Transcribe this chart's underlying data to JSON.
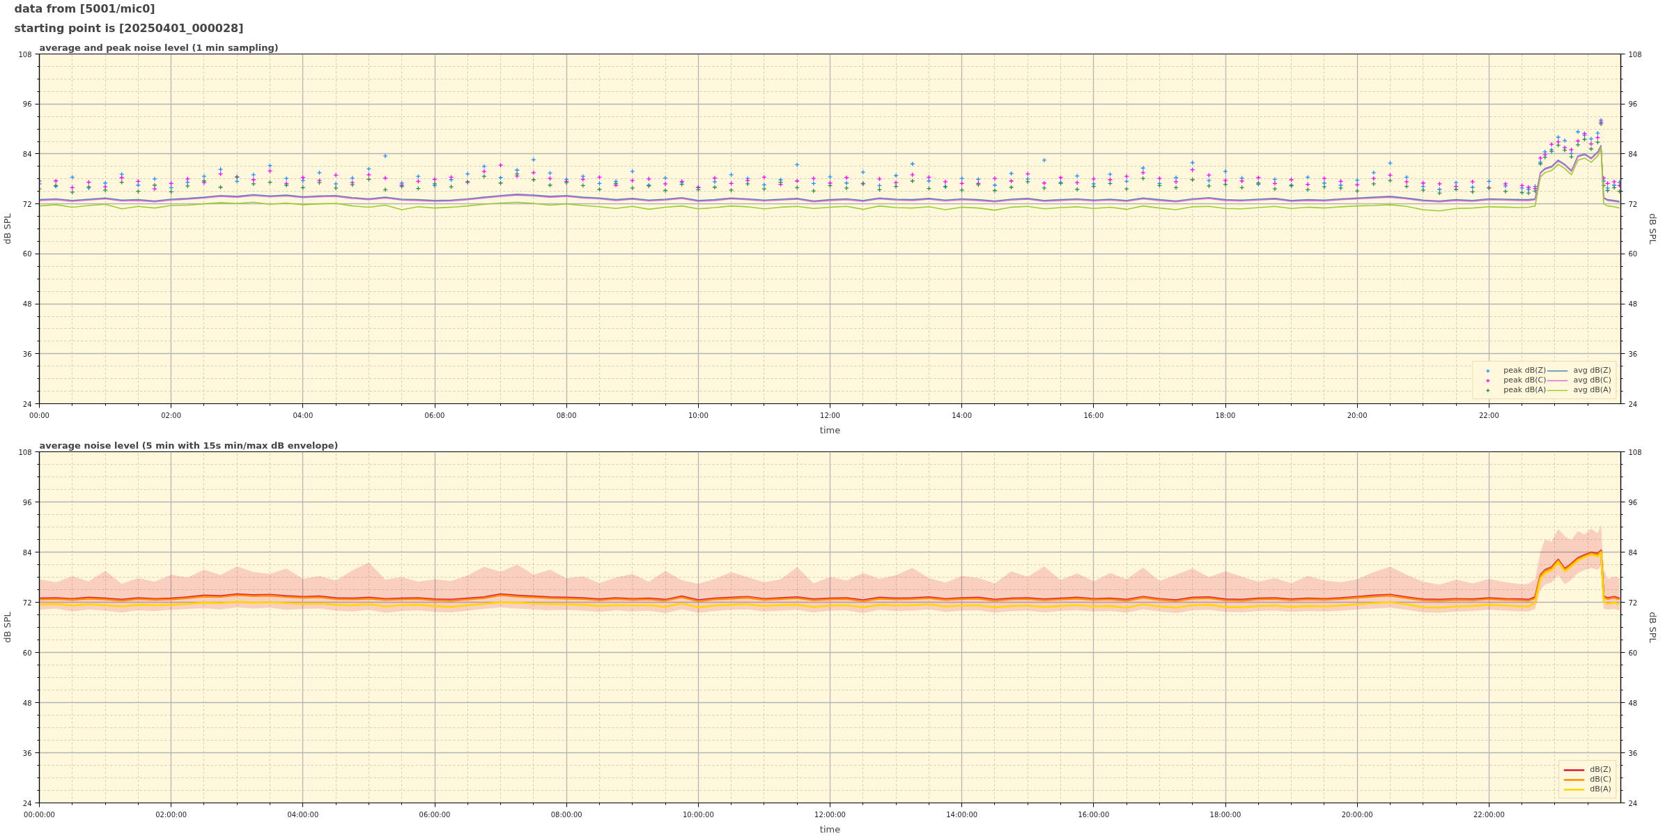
{
  "chart_data": [
    {
      "type": "line",
      "title": "average and peak noise level (1 min sampling)",
      "annotations": [
        "data from [5001/mic0]",
        "starting point is [20250401_000028]"
      ],
      "xlabel": "time",
      "ylabel": "dB SPL",
      "y2label": "dB SPL",
      "xlim": [
        0,
        24
      ],
      "xticks": [
        {
          "value": 0,
          "label": "00:00"
        },
        {
          "value": 0.5,
          "label": null
        },
        {
          "value": 1,
          "label": null
        },
        {
          "value": 1.5,
          "label": null
        },
        {
          "value": 2,
          "label": "02:00"
        },
        {
          "value": 2.5,
          "label": null
        },
        {
          "value": 3,
          "label": null
        },
        {
          "value": 3.5,
          "label": null
        },
        {
          "value": 4,
          "label": "04:00"
        },
        {
          "value": 4.5,
          "label": null
        },
        {
          "value": 5,
          "label": null
        },
        {
          "value": 5.5,
          "label": null
        },
        {
          "value": 6,
          "label": "06:00"
        },
        {
          "value": 6.5,
          "label": null
        },
        {
          "value": 7,
          "label": null
        },
        {
          "value": 7.5,
          "label": null
        },
        {
          "value": 8,
          "label": "08:00"
        },
        {
          "value": 8.5,
          "label": null
        },
        {
          "value": 9,
          "label": null
        },
        {
          "value": 9.5,
          "label": null
        },
        {
          "value": 10,
          "label": "10:00"
        },
        {
          "value": 10.5,
          "label": null
        },
        {
          "value": 11,
          "label": null
        },
        {
          "value": 11.5,
          "label": null
        },
        {
          "value": 12,
          "label": "12:00"
        },
        {
          "value": 12.5,
          "label": null
        },
        {
          "value": 13,
          "label": null
        },
        {
          "value": 13.5,
          "label": null
        },
        {
          "value": 14,
          "label": "14:00"
        },
        {
          "value": 14.5,
          "label": null
        },
        {
          "value": 15,
          "label": null
        },
        {
          "value": 15.5,
          "label": null
        },
        {
          "value": 16,
          "label": "16:00"
        },
        {
          "value": 16.5,
          "label": null
        },
        {
          "value": 17,
          "label": null
        },
        {
          "value": 17.5,
          "label": null
        },
        {
          "value": 18,
          "label": "18:00"
        },
        {
          "value": 18.5,
          "label": null
        },
        {
          "value": 19,
          "label": null
        },
        {
          "value": 19.5,
          "label": null
        },
        {
          "value": 20,
          "label": "20:00"
        },
        {
          "value": 20.5,
          "label": null
        },
        {
          "value": 21,
          "label": null
        },
        {
          "value": 21.5,
          "label": null
        },
        {
          "value": 22,
          "label": "22:00"
        },
        {
          "value": 22.5,
          "label": null
        },
        {
          "value": 23,
          "label": null
        },
        {
          "value": 23.5,
          "label": null
        }
      ],
      "ylim": [
        24,
        108
      ],
      "yticks": [
        24,
        {
          "value": 27,
          "label": null
        },
        {
          "value": 30,
          "label": null
        },
        {
          "value": 33,
          "label": null
        },
        36,
        {
          "value": 39,
          "label": null
        },
        {
          "value": 42,
          "label": null
        },
        {
          "value": 45,
          "label": null
        },
        48,
        {
          "value": 51,
          "label": null
        },
        {
          "value": 54,
          "label": null
        },
        {
          "value": 57,
          "label": null
        },
        60,
        {
          "value": 63,
          "label": null
        },
        {
          "value": 66,
          "label": null
        },
        {
          "value": 69,
          "label": null
        },
        72,
        {
          "value": 75,
          "label": null
        },
        {
          "value": 78,
          "label": null
        },
        {
          "value": 81,
          "label": null
        },
        84,
        {
          "value": 87,
          "label": null
        },
        {
          "value": 90,
          "label": null
        },
        {
          "value": 93,
          "label": null
        },
        96,
        {
          "value": 99,
          "label": null
        },
        {
          "value": 102,
          "label": null
        },
        {
          "value": 105,
          "label": null
        },
        108
      ],
      "y2lim": [
        24,
        108
      ],
      "y2ticks": [
        24,
        {
          "value": 27,
          "label": null
        },
        {
          "value": 30,
          "label": null
        },
        {
          "value": 33,
          "label": null
        },
        36,
        {
          "value": 39,
          "label": null
        },
        {
          "value": 42,
          "label": null
        },
        {
          "value": 45,
          "label": null
        },
        48,
        {
          "value": 51,
          "label": null
        },
        {
          "value": 54,
          "label": null
        },
        {
          "value": 57,
          "label": null
        },
        60,
        {
          "value": 63,
          "label": null
        },
        {
          "value": 66,
          "label": null
        },
        {
          "value": 69,
          "label": null
        },
        72,
        {
          "value": 75,
          "label": null
        },
        {
          "value": 78,
          "label": null
        },
        {
          "value": 81,
          "label": null
        },
        84,
        {
          "value": 87,
          "label": null
        },
        {
          "value": 90,
          "label": null
        },
        {
          "value": 93,
          "label": null
        },
        96,
        {
          "value": 99,
          "label": null
        },
        {
          "value": 102,
          "label": null
        },
        {
          "value": 105,
          "label": null
        },
        108
      ],
      "grid": true,
      "legend": "bottom right",
      "x": [
        0,
        0.25,
        0.5,
        0.75,
        1,
        1.25,
        1.5,
        1.75,
        2,
        2.25,
        2.5,
        2.75,
        3,
        3.25,
        3.5,
        3.75,
        4,
        4.25,
        4.5,
        4.75,
        5,
        5.25,
        5.5,
        5.75,
        6,
        6.25,
        6.5,
        6.75,
        7,
        7.25,
        7.5,
        7.75,
        8,
        8.25,
        8.5,
        8.75,
        9,
        9.25,
        9.5,
        9.75,
        10,
        10.25,
        10.5,
        10.75,
        11,
        11.25,
        11.5,
        11.75,
        12,
        12.25,
        12.5,
        12.75,
        13,
        13.25,
        13.5,
        13.75,
        14,
        14.25,
        14.5,
        14.75,
        15,
        15.25,
        15.5,
        15.75,
        16,
        16.25,
        16.5,
        16.75,
        17,
        17.25,
        17.5,
        17.75,
        18,
        18.25,
        18.5,
        18.75,
        19,
        19.25,
        19.5,
        19.75,
        20,
        20.25,
        20.5,
        20.75,
        21,
        21.25,
        21.5,
        21.75,
        22,
        22.25,
        22.5,
        22.6,
        22.7,
        22.78,
        22.85,
        22.95,
        23.05,
        23.15,
        23.25,
        23.35,
        23.45,
        23.55,
        23.65,
        23.7,
        23.74,
        23.8,
        23.9,
        23.98
      ],
      "series": [
        {
          "name": "peak dB(Z)",
          "type": "scatter",
          "marker": "cross",
          "color": "#1e90ff",
          "values": [
            77.5,
            76.2,
            78.4,
            75.8,
            77.0,
            79.1,
            76.5,
            78.0,
            75.9,
            77.2,
            78.6,
            80.3,
            77.4,
            79.0,
            81.2,
            78.1,
            77.6,
            79.5,
            76.8,
            78.2,
            80.4,
            83.5,
            77.0,
            78.6,
            76.4,
            77.8,
            79.2,
            81.0,
            78.3,
            80.1,
            82.6,
            79.4,
            77.9,
            78.6,
            76.9,
            77.4,
            79.8,
            76.5,
            78.2,
            77.1,
            76.0,
            77.3,
            79.0,
            78.1,
            76.6,
            77.8,
            81.4,
            76.9,
            78.5,
            77.0,
            79.6,
            76.4,
            78.8,
            81.6,
            77.5,
            76.2,
            78.1,
            77.9,
            76.5,
            79.3,
            78.0,
            82.5,
            77.2,
            78.7,
            76.8,
            79.1,
            77.4,
            80.6,
            76.9,
            78.3,
            81.9,
            77.6,
            79.8,
            78.2,
            76.7,
            77.9,
            76.3,
            78.4,
            77.0,
            76.5,
            77.7,
            79.5,
            81.8,
            78.4,
            76.2,
            75.5,
            77.1,
            76.0,
            77.4,
            76.3,
            75.8,
            75.5,
            76.2,
            82.0,
            84.5,
            85.0,
            88.0,
            87.2,
            84.1,
            89.3,
            88.5,
            87.6,
            89.0,
            92.1,
            77.5,
            75.8,
            76.5,
            77.2
          ]
        },
        {
          "name": "peak dB(C)",
          "type": "scatter",
          "marker": "cross",
          "color": "#ff00ff",
          "values": [
            76.8,
            77.5,
            75.9,
            77.2,
            76.1,
            78.3,
            77.4,
            75.6,
            76.9,
            78.0,
            77.1,
            79.2,
            78.5,
            77.8,
            79.9,
            76.9,
            78.3,
            77.6,
            78.9,
            77.1,
            79.0,
            78.2,
            76.5,
            77.4,
            77.9,
            78.4,
            77.2,
            79.8,
            81.3,
            78.7,
            79.5,
            78.1,
            77.4,
            77.9,
            78.4,
            76.5,
            77.6,
            78.0,
            76.8,
            77.4,
            75.9,
            78.2,
            76.9,
            77.6,
            78.4,
            76.7,
            77.5,
            78.1,
            77.0,
            78.3,
            76.8,
            78.0,
            77.1,
            79.0,
            78.4,
            77.3,
            76.9,
            76.9,
            78.1,
            77.5,
            79.2,
            77.0,
            78.3,
            77.1,
            78.0,
            77.8,
            78.6,
            79.5,
            78.1,
            77.3,
            80.2,
            78.9,
            77.6,
            77.5,
            78.3,
            76.9,
            77.8,
            76.7,
            78.1,
            77.4,
            76.6,
            78.1,
            78.9,
            77.3,
            77.0,
            76.8,
            76.2,
            77.3,
            75.9,
            76.8,
            76.4,
            76.0,
            75.7,
            83.0,
            83.8,
            86.3,
            86.9,
            85.5,
            85.0,
            87.1,
            88.9,
            86.4,
            87.9,
            91.6,
            78.2,
            76.9,
            77.3,
            76.4
          ]
        },
        {
          "name": "peak dB(A)",
          "type": "scatter",
          "marker": "cross",
          "color": "#2e8b57",
          "values": [
            75.6,
            76.4,
            74.8,
            76.1,
            75.3,
            77.2,
            75.0,
            76.5,
            74.9,
            76.3,
            77.5,
            76.0,
            78.4,
            76.8,
            77.2,
            76.5,
            75.9,
            77.1,
            75.8,
            76.6,
            77.9,
            75.4,
            76.2,
            75.7,
            76.8,
            76.1,
            77.3,
            78.6,
            77.0,
            79.2,
            77.8,
            76.5,
            77.1,
            76.4,
            75.5,
            76.9,
            75.8,
            76.3,
            75.2,
            76.7,
            75.4,
            76.0,
            75.3,
            76.8,
            75.6,
            77.2,
            75.9,
            75.1,
            76.4,
            75.8,
            76.9,
            75.4,
            76.2,
            77.5,
            75.7,
            76.1,
            75.3,
            76.6,
            75.2,
            76.0,
            77.3,
            75.8,
            76.9,
            75.5,
            76.2,
            76.9,
            75.6,
            78.1,
            76.4,
            75.9,
            77.8,
            76.3,
            76.7,
            75.9,
            77.0,
            75.6,
            76.5,
            75.4,
            76.1,
            75.8,
            75.1,
            76.8,
            77.6,
            76.2,
            75.3,
            74.6,
            75.5,
            74.9,
            75.8,
            75.0,
            74.7,
            74.6,
            75.1,
            81.6,
            83.2,
            84.6,
            86.1,
            84.9,
            83.3,
            86.2,
            87.5,
            85.2,
            86.8,
            91.2,
            76.4,
            75.2,
            75.9,
            75.0
          ]
        },
        {
          "name": "avg dB(Z)",
          "color": "#4682b4",
          "values": [
            73.0,
            73.2,
            72.8,
            73.1,
            73.4,
            72.9,
            73.0,
            72.7,
            73.1,
            73.3,
            73.6,
            74.0,
            73.8,
            74.2,
            73.9,
            74.1,
            73.7,
            73.9,
            74.0,
            73.5,
            73.2,
            73.6,
            73.1,
            73.0,
            72.8,
            72.9,
            73.2,
            73.6,
            74.0,
            74.3,
            74.1,
            73.8,
            74.0,
            73.6,
            73.4,
            73.0,
            73.3,
            72.9,
            73.1,
            73.5,
            72.8,
            73.0,
            73.4,
            73.2,
            72.9,
            73.1,
            73.3,
            72.7,
            73.0,
            73.2,
            72.8,
            73.4,
            73.1,
            73.0,
            73.3,
            72.9,
            73.2,
            73.0,
            72.7,
            73.1,
            73.3,
            72.8,
            73.0,
            73.2,
            72.9,
            73.1,
            72.8,
            73.4,
            73.0,
            72.7,
            73.2,
            73.5,
            73.0,
            72.9,
            73.1,
            73.3,
            72.8,
            73.0,
            72.9,
            73.2,
            73.4,
            73.6,
            73.8,
            73.4,
            72.9,
            72.7,
            73.0,
            72.8,
            73.2,
            73.1,
            73.0,
            73.0,
            73.2,
            79.5,
            80.5,
            81.0,
            82.5,
            81.5,
            80.0,
            83.5,
            84.0,
            83.0,
            84.5,
            86.0,
            73.5,
            73.0,
            72.8,
            72.6
          ]
        },
        {
          "name": "avg dB(C)",
          "color": "#da70d6",
          "values": [
            72.8,
            73.0,
            72.6,
            72.9,
            73.2,
            72.7,
            72.8,
            72.5,
            72.9,
            73.1,
            73.4,
            73.8,
            73.6,
            74.0,
            73.7,
            73.9,
            73.5,
            73.7,
            73.8,
            73.3,
            73.0,
            73.4,
            72.9,
            72.8,
            72.6,
            72.7,
            73.0,
            73.4,
            73.8,
            74.1,
            73.9,
            73.6,
            73.8,
            73.4,
            73.2,
            72.8,
            73.1,
            72.7,
            72.9,
            73.3,
            72.6,
            72.8,
            73.2,
            73.0,
            72.7,
            72.9,
            73.1,
            72.5,
            72.8,
            73.0,
            72.6,
            73.2,
            72.9,
            72.8,
            73.1,
            72.7,
            73.0,
            72.8,
            72.5,
            72.9,
            73.1,
            72.6,
            72.8,
            73.0,
            72.7,
            72.9,
            72.6,
            73.2,
            72.8,
            72.5,
            73.0,
            73.3,
            72.8,
            72.7,
            72.9,
            73.1,
            72.6,
            72.8,
            72.7,
            73.0,
            73.2,
            73.4,
            73.6,
            73.2,
            72.7,
            72.5,
            72.8,
            72.6,
            73.0,
            72.9,
            72.8,
            72.8,
            73.0,
            79.3,
            80.3,
            80.8,
            82.3,
            81.3,
            79.8,
            83.3,
            83.8,
            82.8,
            84.3,
            85.8,
            73.3,
            72.8,
            72.6,
            72.4
          ]
        },
        {
          "name": "avg dB(A)",
          "color": "#9acd32",
          "values": [
            71.5,
            71.8,
            71.2,
            71.6,
            71.9,
            70.8,
            71.4,
            71.0,
            71.6,
            71.7,
            72.0,
            72.3,
            72.1,
            72.4,
            71.9,
            72.2,
            71.8,
            72.0,
            72.1,
            71.5,
            71.2,
            71.7,
            70.6,
            71.3,
            71.0,
            71.2,
            71.5,
            71.9,
            72.2,
            72.4,
            72.1,
            71.7,
            72.0,
            71.6,
            71.3,
            70.9,
            71.4,
            70.7,
            71.2,
            71.5,
            70.8,
            71.1,
            71.5,
            71.3,
            70.8,
            71.2,
            71.4,
            70.9,
            71.2,
            71.4,
            70.7,
            71.5,
            71.1,
            71.0,
            71.3,
            70.6,
            71.2,
            71.0,
            70.5,
            71.2,
            71.4,
            70.8,
            71.1,
            71.3,
            70.9,
            71.2,
            70.7,
            71.5,
            71.0,
            70.6,
            71.3,
            71.4,
            70.9,
            70.8,
            71.1,
            71.4,
            70.9,
            71.2,
            71.0,
            71.3,
            71.5,
            71.6,
            71.8,
            71.4,
            70.6,
            70.3,
            70.9,
            71.0,
            71.3,
            71.2,
            71.1,
            71.2,
            71.5,
            78.5,
            79.5,
            80.0,
            81.5,
            80.5,
            79.0,
            82.5,
            83.0,
            82.0,
            83.5,
            85.5,
            72.0,
            71.5,
            71.3,
            71.0
          ]
        }
      ]
    },
    {
      "type": "line",
      "title": "average noise level (5 min with 15s min/max dB envelope)",
      "xlabel": "time",
      "ylabel": "dB SPL",
      "y2label": "dB SPL",
      "xlim": [
        0,
        24
      ],
      "xticks": [
        {
          "value": 0,
          "label": "00:00:00"
        },
        {
          "value": 0.5,
          "label": null
        },
        {
          "value": 1,
          "label": null
        },
        {
          "value": 1.5,
          "label": null
        },
        {
          "value": 2,
          "label": "02:00:00"
        },
        {
          "value": 2.5,
          "label": null
        },
        {
          "value": 3,
          "label": null
        },
        {
          "value": 3.5,
          "label": null
        },
        {
          "value": 4,
          "label": "04:00:00"
        },
        {
          "value": 4.5,
          "label": null
        },
        {
          "value": 5,
          "label": null
        },
        {
          "value": 5.5,
          "label": null
        },
        {
          "value": 6,
          "label": "06:00:00"
        },
        {
          "value": 6.5,
          "label": null
        },
        {
          "value": 7,
          "label": null
        },
        {
          "value": 7.5,
          "label": null
        },
        {
          "value": 8,
          "label": "08:00:00"
        },
        {
          "value": 8.5,
          "label": null
        },
        {
          "value": 9,
          "label": null
        },
        {
          "value": 9.5,
          "label": null
        },
        {
          "value": 10,
          "label": "10:00:00"
        },
        {
          "value": 10.5,
          "label": null
        },
        {
          "value": 11,
          "label": null
        },
        {
          "value": 11.5,
          "label": null
        },
        {
          "value": 12,
          "label": "12:00:00"
        },
        {
          "value": 12.5,
          "label": null
        },
        {
          "value": 13,
          "label": null
        },
        {
          "value": 13.5,
          "label": null
        },
        {
          "value": 14,
          "label": "14:00:00"
        },
        {
          "value": 14.5,
          "label": null
        },
        {
          "value": 15,
          "label": null
        },
        {
          "value": 15.5,
          "label": null
        },
        {
          "value": 16,
          "label": "16:00:00"
        },
        {
          "value": 16.5,
          "label": null
        },
        {
          "value": 17,
          "label": null
        },
        {
          "value": 17.5,
          "label": null
        },
        {
          "value": 18,
          "label": "18:00:00"
        },
        {
          "value": 18.5,
          "label": null
        },
        {
          "value": 19,
          "label": null
        },
        {
          "value": 19.5,
          "label": null
        },
        {
          "value": 20,
          "label": "20:00:00"
        },
        {
          "value": 20.5,
          "label": null
        },
        {
          "value": 21,
          "label": null
        },
        {
          "value": 21.5,
          "label": null
        },
        {
          "value": 22,
          "label": "22:00:00"
        },
        {
          "value": 22.5,
          "label": null
        },
        {
          "value": 23,
          "label": null
        },
        {
          "value": 23.5,
          "label": null
        }
      ],
      "ylim": [
        24,
        108
      ],
      "yticks": [
        24,
        {
          "value": 27,
          "label": null
        },
        {
          "value": 30,
          "label": null
        },
        {
          "value": 33,
          "label": null
        },
        36,
        {
          "value": 39,
          "label": null
        },
        {
          "value": 42,
          "label": null
        },
        {
          "value": 45,
          "label": null
        },
        48,
        {
          "value": 51,
          "label": null
        },
        {
          "value": 54,
          "label": null
        },
        {
          "value": 57,
          "label": null
        },
        60,
        {
          "value": 63,
          "label": null
        },
        {
          "value": 66,
          "label": null
        },
        {
          "value": 69,
          "label": null
        },
        72,
        {
          "value": 75,
          "label": null
        },
        {
          "value": 78,
          "label": null
        },
        {
          "value": 81,
          "label": null
        },
        84,
        {
          "value": 87,
          "label": null
        },
        {
          "value": 90,
          "label": null
        },
        {
          "value": 93,
          "label": null
        },
        96,
        {
          "value": 99,
          "label": null
        },
        {
          "value": 102,
          "label": null
        },
        {
          "value": 105,
          "label": null
        },
        108
      ],
      "y2lim": [
        24,
        108
      ],
      "y2ticks": [
        24,
        {
          "value": 27,
          "label": null
        },
        {
          "value": 30,
          "label": null
        },
        {
          "value": 33,
          "label": null
        },
        36,
        {
          "value": 39,
          "label": null
        },
        {
          "value": 42,
          "label": null
        },
        {
          "value": 45,
          "label": null
        },
        48,
        {
          "value": 51,
          "label": null
        },
        {
          "value": 54,
          "label": null
        },
        {
          "value": 57,
          "label": null
        },
        60,
        {
          "value": 63,
          "label": null
        },
        {
          "value": 66,
          "label": null
        },
        {
          "value": 69,
          "label": null
        },
        72,
        {
          "value": 75,
          "label": null
        },
        {
          "value": 78,
          "label": null
        },
        {
          "value": 81,
          "label": null
        },
        84,
        {
          "value": 87,
          "label": null
        },
        {
          "value": 90,
          "label": null
        },
        {
          "value": 93,
          "label": null
        },
        96,
        {
          "value": 99,
          "label": null
        },
        {
          "value": 102,
          "label": null
        },
        {
          "value": 105,
          "label": null
        },
        108
      ],
      "grid": true,
      "legend": "bottom right",
      "x": [
        0,
        0.25,
        0.5,
        0.75,
        1,
        1.25,
        1.5,
        1.75,
        2,
        2.25,
        2.5,
        2.75,
        3,
        3.25,
        3.5,
        3.75,
        4,
        4.25,
        4.5,
        4.75,
        5,
        5.25,
        5.5,
        5.75,
        6,
        6.25,
        6.5,
        6.75,
        7,
        7.25,
        7.5,
        7.75,
        8,
        8.25,
        8.5,
        8.75,
        9,
        9.25,
        9.5,
        9.75,
        10,
        10.25,
        10.5,
        10.75,
        11,
        11.25,
        11.5,
        11.75,
        12,
        12.25,
        12.5,
        12.75,
        13,
        13.25,
        13.5,
        13.75,
        14,
        14.25,
        14.5,
        14.75,
        15,
        15.25,
        15.5,
        15.75,
        16,
        16.25,
        16.5,
        16.75,
        17,
        17.25,
        17.5,
        17.75,
        18,
        18.25,
        18.5,
        18.75,
        19,
        19.25,
        19.5,
        19.75,
        20,
        20.25,
        20.5,
        20.75,
        21,
        21.25,
        21.5,
        21.75,
        22,
        22.25,
        22.5,
        22.6,
        22.7,
        22.78,
        22.85,
        22.95,
        23.05,
        23.15,
        23.25,
        23.35,
        23.45,
        23.55,
        23.65,
        23.7,
        23.74,
        23.8,
        23.9,
        23.98
      ],
      "series": [
        {
          "name": "dB(Z)",
          "color": "#dc143c",
          "values": [
            72.9,
            73.0,
            72.8,
            73.1,
            72.9,
            72.6,
            73.0,
            72.8,
            72.9,
            73.2,
            73.6,
            73.5,
            73.9,
            73.7,
            73.8,
            73.5,
            73.3,
            73.4,
            73.0,
            72.9,
            73.1,
            72.8,
            72.9,
            73.0,
            72.7,
            72.6,
            72.9,
            73.2,
            73.9,
            73.6,
            73.4,
            73.2,
            73.1,
            73.0,
            72.7,
            73.0,
            72.8,
            72.9,
            72.6,
            73.4,
            72.5,
            72.9,
            73.1,
            73.3,
            72.8,
            73.0,
            73.2,
            72.7,
            72.9,
            73.0,
            72.5,
            73.1,
            72.9,
            73.0,
            73.2,
            72.8,
            73.0,
            73.1,
            72.6,
            72.9,
            73.0,
            72.7,
            72.9,
            73.1,
            72.8,
            72.9,
            72.6,
            73.3,
            72.8,
            72.5,
            73.1,
            73.2,
            72.7,
            72.6,
            72.9,
            73.0,
            72.7,
            72.9,
            72.8,
            73.0,
            73.3,
            73.6,
            73.8,
            73.2,
            72.7,
            72.6,
            72.8,
            72.7,
            73.0,
            72.8,
            72.7,
            72.6,
            73.2,
            78.5,
            79.7,
            80.4,
            82.2,
            80.0,
            81.2,
            82.6,
            83.3,
            83.9,
            83.6,
            84.4,
            73.4,
            73.0,
            73.3,
            72.9
          ],
          "lower": [
            70.2,
            70.5,
            69.8,
            70.3,
            70.0,
            69.6,
            70.1,
            69.9,
            70.2,
            70.4,
            70.6,
            70.3,
            70.8,
            70.5,
            70.7,
            70.2,
            70.4,
            70.5,
            70.0,
            69.8,
            70.2,
            69.5,
            69.9,
            70.1,
            69.7,
            69.6,
            70.0,
            70.4,
            70.8,
            70.5,
            70.3,
            70.1,
            70.2,
            70.0,
            69.7,
            70.1,
            69.8,
            70.0,
            69.4,
            70.3,
            69.5,
            69.9,
            70.2,
            70.3,
            69.8,
            70.0,
            70.2,
            69.6,
            70.0,
            70.1,
            69.4,
            70.2,
            69.9,
            70.0,
            70.3,
            69.7,
            70.0,
            70.1,
            69.5,
            69.9,
            70.0,
            69.6,
            69.9,
            70.1,
            69.8,
            69.9,
            69.5,
            70.3,
            69.8,
            69.4,
            70.1,
            70.2,
            69.7,
            69.6,
            69.9,
            70.0,
            69.7,
            69.9,
            69.8,
            70.0,
            70.3,
            70.5,
            70.7,
            70.2,
            69.6,
            69.5,
            69.8,
            69.9,
            70.2,
            70.0,
            69.8,
            69.8,
            70.4,
            75.0,
            76.2,
            76.8,
            78.5,
            76.3,
            77.4,
            79.0,
            79.7,
            80.2,
            79.8,
            80.8,
            70.5,
            70.2,
            70.4,
            70.0
          ],
          "upper": [
            77.5,
            76.8,
            78.2,
            77.0,
            79.5,
            76.4,
            77.8,
            76.9,
            78.6,
            77.9,
            79.8,
            78.5,
            80.6,
            79.2,
            78.8,
            80.1,
            77.6,
            78.3,
            77.2,
            79.6,
            81.5,
            77.4,
            78.0,
            76.9,
            77.5,
            77.1,
            78.4,
            80.5,
            79.3,
            81.0,
            78.6,
            79.8,
            77.7,
            78.2,
            76.6,
            77.9,
            78.8,
            76.9,
            79.5,
            77.3,
            76.4,
            77.6,
            79.2,
            78.0,
            76.8,
            77.5,
            80.4,
            76.5,
            78.1,
            77.2,
            79.0,
            77.6,
            78.5,
            80.2,
            77.8,
            76.7,
            78.3,
            77.8,
            76.5,
            79.4,
            78.1,
            80.6,
            77.3,
            78.9,
            77.0,
            79.0,
            77.5,
            80.3,
            77.1,
            78.6,
            80.1,
            78.0,
            79.4,
            78.1,
            76.9,
            77.8,
            76.6,
            78.3,
            77.2,
            76.8,
            77.5,
            79.2,
            80.5,
            78.6,
            76.9,
            76.2,
            77.4,
            76.5,
            77.6,
            76.8,
            76.3,
            76.4,
            77.5,
            84.0,
            87.0,
            86.5,
            89.5,
            87.8,
            86.9,
            89.0,
            88.2,
            89.6,
            88.5,
            90.5,
            80.0,
            77.6,
            78.2,
            77.8
          ]
        },
        {
          "name": "dB(C)",
          "color": "#ff8c00",
          "values": [
            72.7,
            72.8,
            72.6,
            72.9,
            72.7,
            72.4,
            72.8,
            72.6,
            72.7,
            73.0,
            73.4,
            73.3,
            73.7,
            73.5,
            73.6,
            73.3,
            73.1,
            73.2,
            72.8,
            72.7,
            72.9,
            72.6,
            72.7,
            72.8,
            72.5,
            72.4,
            72.7,
            73.0,
            73.7,
            73.4,
            73.2,
            73.0,
            72.9,
            72.8,
            72.5,
            72.8,
            72.6,
            72.7,
            72.4,
            73.2,
            72.3,
            72.7,
            72.9,
            73.1,
            72.6,
            72.8,
            73.0,
            72.5,
            72.7,
            72.8,
            72.3,
            72.9,
            72.7,
            72.8,
            73.0,
            72.6,
            72.8,
            72.9,
            72.4,
            72.7,
            72.8,
            72.5,
            72.7,
            72.9,
            72.6,
            72.7,
            72.4,
            73.1,
            72.6,
            72.3,
            72.9,
            73.0,
            72.5,
            72.4,
            72.7,
            72.8,
            72.5,
            72.7,
            72.6,
            72.8,
            73.1,
            73.4,
            73.6,
            73.0,
            72.5,
            72.4,
            72.6,
            72.5,
            72.8,
            72.6,
            72.5,
            72.4,
            73.0,
            78.3,
            79.5,
            80.2,
            82.0,
            79.8,
            81.0,
            82.4,
            83.1,
            83.7,
            83.4,
            84.2,
            73.2,
            72.8,
            73.1,
            72.7
          ]
        },
        {
          "name": "dB(A)",
          "color": "#ffd700",
          "values": [
            71.5,
            71.6,
            71.2,
            71.5,
            71.3,
            71.0,
            71.4,
            71.3,
            71.4,
            71.6,
            71.9,
            71.8,
            72.1,
            71.9,
            72.0,
            71.8,
            71.6,
            71.7,
            71.4,
            71.3,
            71.5,
            71.0,
            71.3,
            71.4,
            71.1,
            70.9,
            71.3,
            71.6,
            72.0,
            71.9,
            71.7,
            71.6,
            71.5,
            71.4,
            71.1,
            71.3,
            71.2,
            71.3,
            70.9,
            71.7,
            70.8,
            71.2,
            71.4,
            71.5,
            71.1,
            71.3,
            71.4,
            70.9,
            71.2,
            71.3,
            70.8,
            71.4,
            71.2,
            71.3,
            71.5,
            71.0,
            71.2,
            71.3,
            70.8,
            71.1,
            71.2,
            70.9,
            71.1,
            71.3,
            71.0,
            71.1,
            70.7,
            71.5,
            71.0,
            70.7,
            71.3,
            71.4,
            70.9,
            70.8,
            71.1,
            71.2,
            70.9,
            71.1,
            71.0,
            71.2,
            71.5,
            71.8,
            72.0,
            71.5,
            70.8,
            70.7,
            71.0,
            71.1,
            71.4,
            71.2,
            71.0,
            71.0,
            71.8,
            77.6,
            79.0,
            79.6,
            81.6,
            79.4,
            80.6,
            82.0,
            82.8,
            83.4,
            83.0,
            83.9,
            72.1,
            71.6,
            71.9,
            71.5
          ]
        }
      ]
    }
  ]
}
